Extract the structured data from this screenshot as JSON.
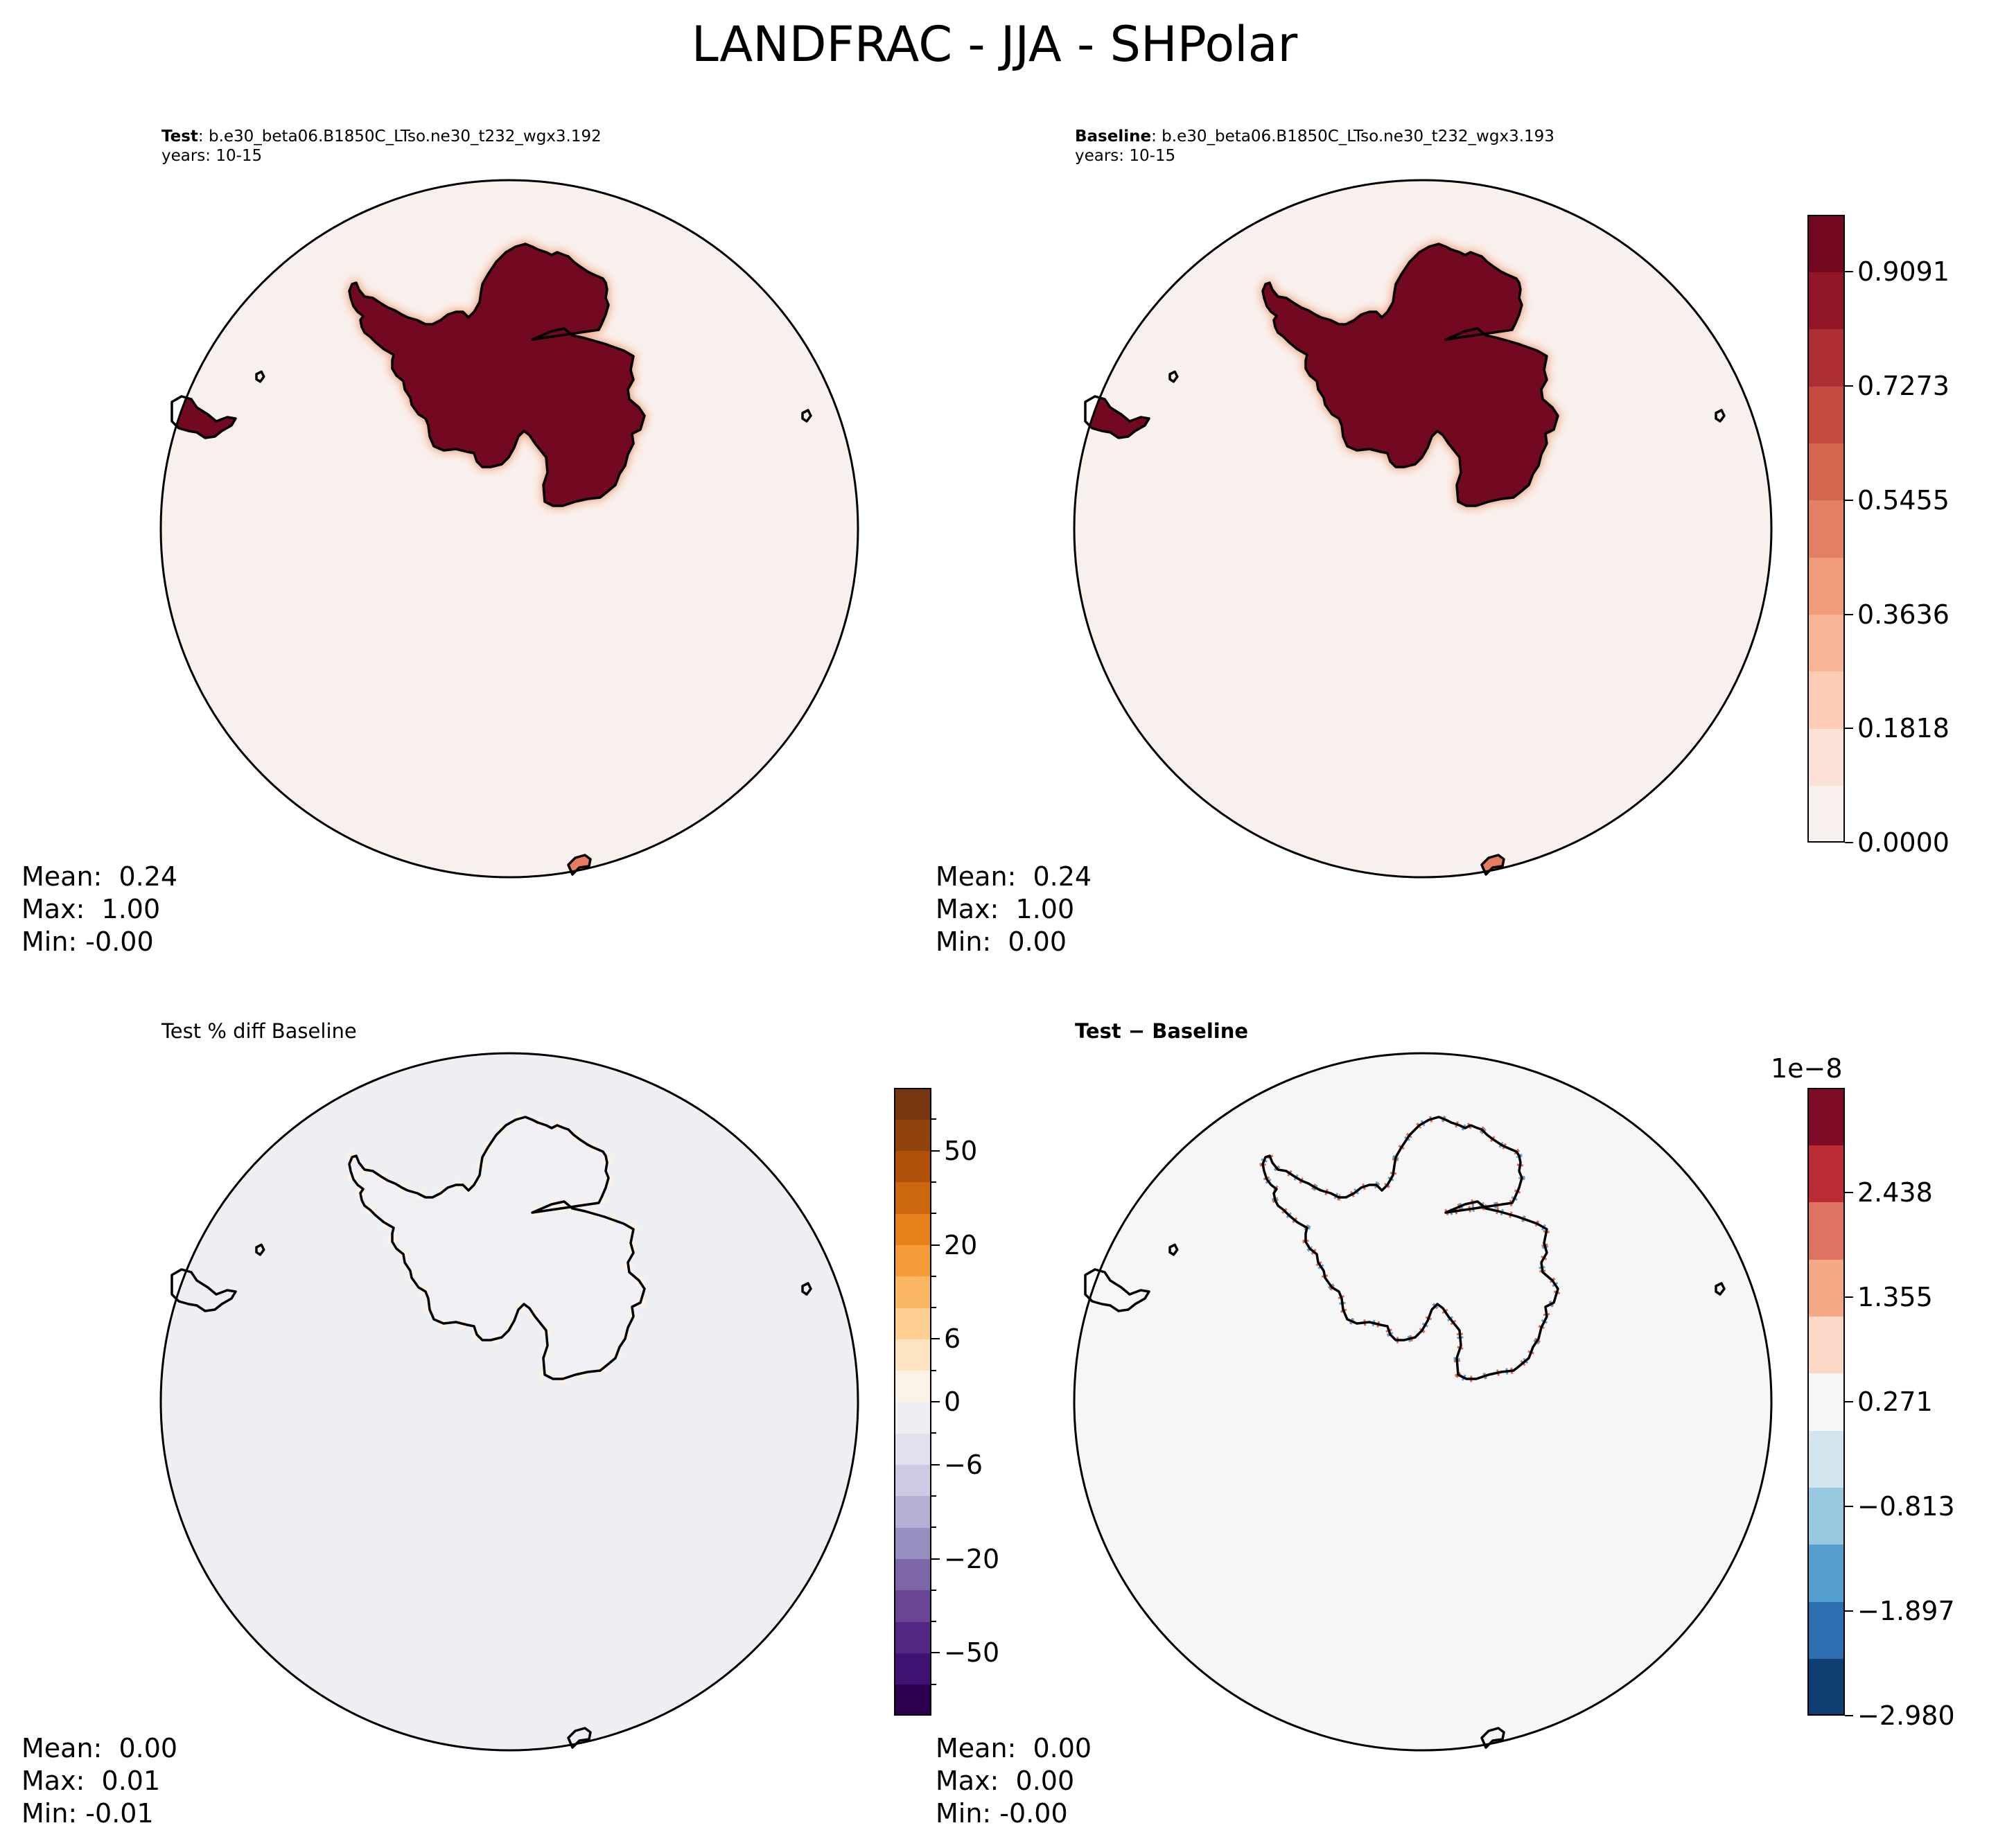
{
  "suptitle": "LANDFRAC - JJA - SHPolar",
  "panels": {
    "test": {
      "title_bold": "Test",
      "title_rest": ": b.e30_beta06.B1850C_LTso.ne30_t232_wgx3.192",
      "years": "years: 10-15",
      "stats": {
        "mean": "Mean:  0.24",
        "max": "Max:  1.00",
        "min": "Min: -0.00"
      }
    },
    "baseline": {
      "title_bold": "Baseline",
      "title_rest": ": b.e30_beta06.B1850C_LTso.ne30_t232_wgx3.193",
      "years": "years: 10-15",
      "stats": {
        "mean": "Mean:  0.24",
        "max": "Max:  1.00",
        "min": "Min:  0.00"
      }
    },
    "pctdiff": {
      "title": "Test % diff Baseline",
      "stats": {
        "mean": "Mean:  0.00",
        "max": "Max:  0.01",
        "min": "Min: -0.01"
      }
    },
    "diff": {
      "title_bold": "Test − Baseline",
      "stats": {
        "mean": "Mean:  0.00",
        "max": "Max:  0.00",
        "min": "Min: -0.00"
      }
    }
  },
  "colorbars": {
    "main": {
      "ticks": [
        "0.0000",
        "0.1818",
        "0.3636",
        "0.5455",
        "0.7273",
        "0.9091"
      ],
      "colors": [
        "#f7f0ec",
        "#fbe1d6",
        "#fbcbb4",
        "#f7b596",
        "#f09b7a",
        "#e38064",
        "#d4654f",
        "#c34b3f",
        "#ad2f33",
        "#911628",
        "#730821"
      ]
    },
    "pct": {
      "ticks": [
        "−50",
        "−20",
        "−6",
        "0",
        "6",
        "20",
        "50"
      ],
      "colors": [
        "#2c004e",
        "#3f1171",
        "#532784",
        "#684695",
        "#7d66a7",
        "#998ec0",
        "#b5afd3",
        "#cdcae3",
        "#e1e0ee",
        "#eeeef4",
        "#fbf3e7",
        "#fde4c3",
        "#fdcf92",
        "#fbb763",
        "#f39c39",
        "#e6811b",
        "#cc6710",
        "#b05109",
        "#90420b",
        "#773510"
      ]
    },
    "diff": {
      "offset": "1e−8",
      "ticks": [
        "−2.980",
        "−1.897",
        "−0.813",
        "0.271",
        "1.355",
        "2.438"
      ],
      "colors": [
        "#0f3f73",
        "#2d6eb0",
        "#549fce",
        "#98c9e0",
        "#d3e6f0",
        "#f6f6f6",
        "#fbd8c5",
        "#f4a886",
        "#dd7361",
        "#bb2c35",
        "#7f0c26"
      ]
    }
  },
  "chart_data": [
    {
      "type": "heatmap",
      "title": "Test : b.e30_beta06.B1850C_LTso.ne30_t232_wgx3.192",
      "subtitle": "years: 10-15",
      "variable": "LANDFRAC",
      "season": "JJA",
      "region": "SHPolar",
      "clim": [
        0.0,
        1.0
      ],
      "colormap": "Reds",
      "summary": {
        "mean": 0.24,
        "max": 1.0,
        "min": -0.0
      }
    },
    {
      "type": "heatmap",
      "title": "Baseline : b.e30_beta06.B1850C_LTso.ne30_t232_wgx3.193",
      "subtitle": "years: 10-15",
      "variable": "LANDFRAC",
      "season": "JJA",
      "region": "SHPolar",
      "clim": [
        0.0,
        1.0
      ],
      "colormap": "Reds",
      "colorbar_ticks": [
        0.0,
        0.1818,
        0.3636,
        0.5455,
        0.7273,
        0.9091
      ],
      "summary": {
        "mean": 0.24,
        "max": 1.0,
        "min": 0.0
      }
    },
    {
      "type": "heatmap",
      "title": "Test % diff Baseline",
      "colormap": "PuOr_r",
      "colorbar_ticks": [
        -50,
        -20,
        -6,
        0,
        6,
        20,
        50
      ],
      "summary": {
        "mean": 0.0,
        "max": 0.01,
        "min": -0.01
      }
    },
    {
      "type": "heatmap",
      "title": "Test − Baseline",
      "colormap": "RdBu_r",
      "colorbar_offset": "1e-8",
      "colorbar_ticks": [
        -2.98,
        -1.897,
        -0.813,
        0.271,
        1.355,
        2.438
      ],
      "summary": {
        "mean": 0.0,
        "max": 0.0,
        "min": -0.0
      }
    }
  ]
}
